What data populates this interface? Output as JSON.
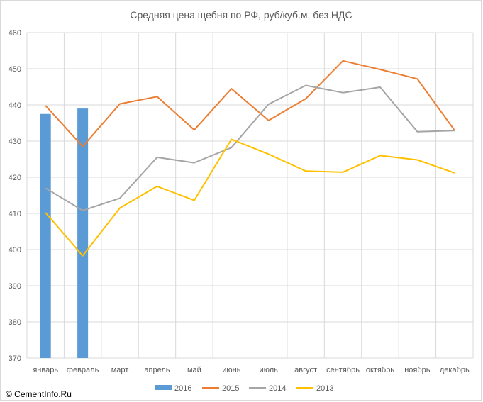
{
  "chart_data": {
    "type": "bar+line",
    "title": "Средняя цена щебня по РФ, руб/куб.м, без НДС",
    "categories": [
      "январь",
      "февраль",
      "март",
      "апрель",
      "май",
      "июнь",
      "июль",
      "август",
      "сентябрь",
      "октябрь",
      "ноябрь",
      "декабрь"
    ],
    "ylim": [
      370,
      460
    ],
    "yticks": [
      370,
      380,
      390,
      400,
      410,
      420,
      430,
      440,
      450,
      460
    ],
    "grid": true,
    "legend_position": "bottom",
    "series": [
      {
        "name": "2016",
        "kind": "bar",
        "color": "#5b9bd5",
        "values": [
          437.5,
          439,
          null,
          null,
          null,
          null,
          null,
          null,
          null,
          null,
          null,
          null
        ]
      },
      {
        "name": "2015",
        "kind": "line",
        "color": "#ed7d31",
        "values": [
          439.8,
          428.5,
          440.3,
          442.3,
          433.1,
          444.5,
          435.7,
          441.7,
          452.2,
          449.8,
          447.2,
          433
        ]
      },
      {
        "name": "2014",
        "kind": "line",
        "color": "#a5a5a5",
        "values": [
          417,
          410.8,
          414.2,
          425.5,
          424,
          428.2,
          440.2,
          445.4,
          443.4,
          444.9,
          432.6,
          432.9
        ]
      },
      {
        "name": "2013",
        "kind": "line",
        "color": "#ffc000",
        "values": [
          410.2,
          398.3,
          411.5,
          417.5,
          413.6,
          430.5,
          426.4,
          421.7,
          421.4,
          426,
          424.8,
          421.2
        ]
      }
    ]
  },
  "footer": {
    "copyright": "© CementInfo.Ru"
  }
}
